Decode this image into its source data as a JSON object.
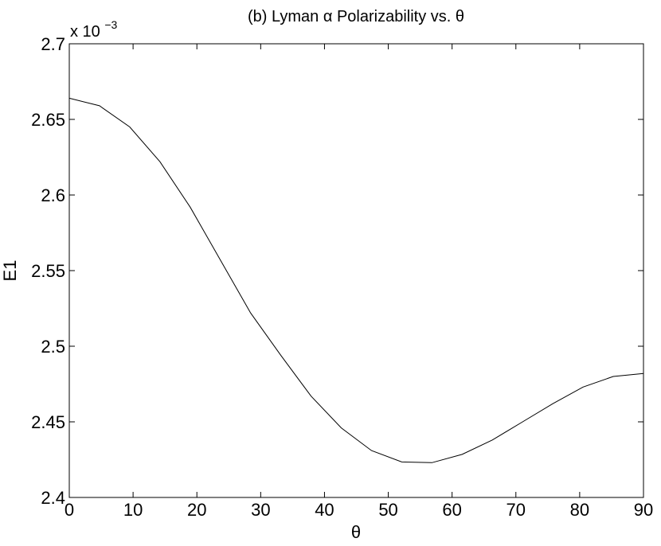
{
  "chart_data": {
    "type": "line",
    "title": "(b) Lyman α Polarizability vs. θ",
    "xlabel": "θ",
    "ylabel": "E1",
    "y_multiplier": {
      "base": "x 10",
      "exponent": "−3"
    },
    "xlim": [
      0,
      90
    ],
    "ylim": [
      2.4,
      2.7
    ],
    "xticks": [
      0,
      10,
      20,
      30,
      40,
      50,
      60,
      70,
      80,
      90
    ],
    "xtick_labels": [
      "0",
      "10",
      "20",
      "30",
      "40",
      "50",
      "60",
      "70",
      "80",
      "90"
    ],
    "yticks": [
      2.4,
      2.45,
      2.5,
      2.55,
      2.6,
      2.65,
      2.7
    ],
    "ytick_labels": [
      "2.4",
      "2.45",
      "2.5",
      "2.55",
      "2.6",
      "2.65",
      "2.7"
    ],
    "grid": false,
    "line_color": "#000000",
    "series": [
      {
        "x": [
          0,
          4.737,
          9.474,
          14.211,
          18.947,
          23.684,
          28.421,
          33.158,
          37.895,
          42.632,
          47.368,
          52.105,
          56.842,
          61.579,
          66.316,
          71.053,
          75.789,
          80.526,
          85.263,
          90
        ],
        "y": [
          2.664,
          2.659,
          2.645,
          2.622,
          2.592,
          2.557,
          2.522,
          2.494,
          2.467,
          2.446,
          2.431,
          2.4235,
          2.423,
          2.4285,
          2.438,
          2.45,
          2.462,
          2.473,
          2.48,
          2.482
        ]
      }
    ]
  }
}
